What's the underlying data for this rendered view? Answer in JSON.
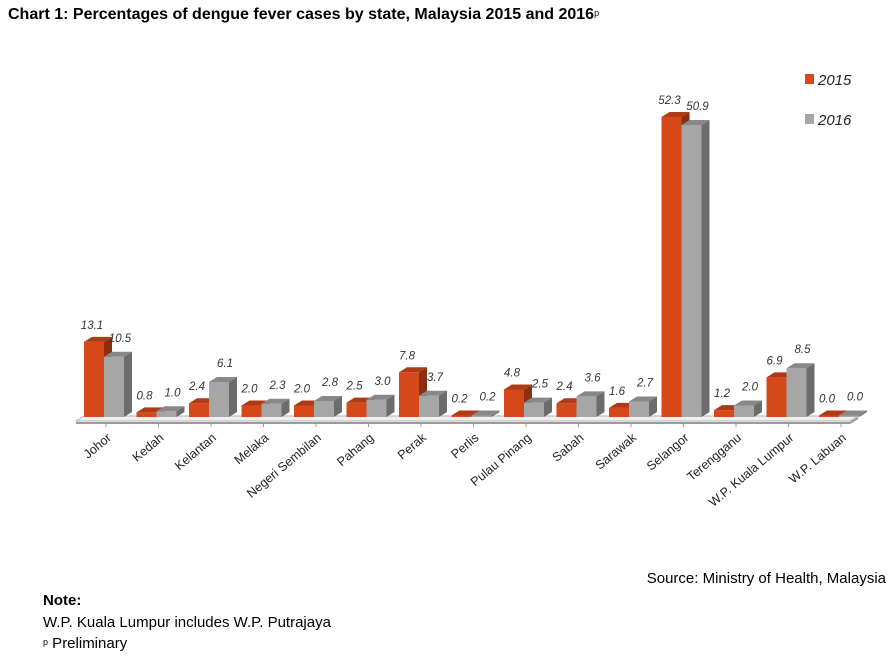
{
  "chart_data": {
    "type": "bar",
    "title": "Chart 1: Percentages of dengue fever cases by state, Malaysia 2015 and 2016",
    "title_superscript": "p",
    "xlabel": "",
    "ylabel": "",
    "ylim": [
      0,
      55
    ],
    "grid": false,
    "legend_position": "top-right",
    "categories": [
      "Johor",
      "Kedah",
      "Kelantan",
      "Melaka",
      "Negeri Sembilan",
      "Pahang",
      "Perak",
      "Perlis",
      "Pulau Pinang",
      "Sabah",
      "Sarawak",
      "Selangor",
      "Terengganu",
      "W.P. Kuala Lumpur",
      "W.P. Labuan"
    ],
    "series": [
      {
        "name": "2015",
        "color": "#d4481a",
        "values": [
          13.1,
          0.8,
          2.4,
          2.0,
          2.0,
          2.5,
          7.8,
          0.2,
          4.8,
          2.4,
          1.6,
          52.3,
          1.2,
          6.9,
          0.0
        ]
      },
      {
        "name": "2016",
        "color": "#a6a6a6",
        "values": [
          10.5,
          1.0,
          6.1,
          2.3,
          2.8,
          3.0,
          3.7,
          0.2,
          2.5,
          3.6,
          2.7,
          50.9,
          2.0,
          8.5,
          0.0
        ]
      }
    ]
  },
  "source": "Source: Ministry of Health, Malaysia",
  "notes": {
    "heading": "Note:",
    "lines": [
      {
        "superscript": "",
        "text": "W.P. Kuala Lumpur includes W.P. Putrajaya"
      },
      {
        "superscript": "p",
        "text": " Preliminary"
      }
    ]
  }
}
